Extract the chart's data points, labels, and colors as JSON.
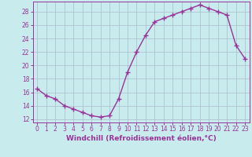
{
  "x": [
    0,
    1,
    2,
    3,
    4,
    5,
    6,
    7,
    8,
    9,
    10,
    11,
    12,
    13,
    14,
    15,
    16,
    17,
    18,
    19,
    20,
    21,
    22,
    23
  ],
  "y": [
    16.5,
    15.5,
    15.0,
    14.0,
    13.5,
    13.0,
    12.5,
    12.3,
    12.5,
    15.0,
    19.0,
    22.0,
    24.5,
    26.5,
    27.0,
    27.5,
    28.0,
    28.5,
    29.0,
    28.5,
    28.0,
    27.5,
    23.0,
    21.0
  ],
  "line_color": "#993399",
  "marker": "+",
  "marker_size": 4,
  "bg_color": "#c8eced",
  "grid_color": "#aabbcc",
  "axis_color": "#993399",
  "xlabel": "Windchill (Refroidissement éolien,°C)",
  "ylim": [
    11.5,
    29.5
  ],
  "xlim": [
    -0.5,
    23.5
  ],
  "yticks": [
    12,
    14,
    16,
    18,
    20,
    22,
    24,
    26,
    28
  ],
  "xticks": [
    0,
    1,
    2,
    3,
    4,
    5,
    6,
    7,
    8,
    9,
    10,
    11,
    12,
    13,
    14,
    15,
    16,
    17,
    18,
    19,
    20,
    21,
    22,
    23
  ],
  "tick_fontsize": 5.5,
  "xlabel_fontsize": 6.5
}
